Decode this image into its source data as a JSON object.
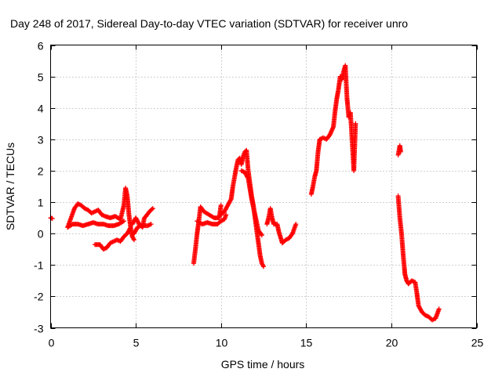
{
  "chart_data": {
    "type": "scatter",
    "title": "Day 248 of 2017, Sidereal Day-to-day VTEC variation (SDTVAR) for receiver unro",
    "xlabel": "GPS time / hours",
    "ylabel": "SDTVAR / TECUs",
    "xlim": [
      0,
      25
    ],
    "ylim": [
      -3,
      6
    ],
    "xticks": [
      "0",
      "5",
      "10",
      "15",
      "20",
      "25"
    ],
    "yticks": [
      "-3",
      "-2",
      "-1",
      "0",
      "1",
      "2",
      "3",
      "4",
      "5",
      "6"
    ],
    "grid": true,
    "marker": "+",
    "series_color": "#ff0000",
    "series": [
      {
        "name": "SDTVAR",
        "segments": [
          [
            [
              0.0,
              0.5
            ],
            [
              0.1,
              0.48
            ]
          ],
          [
            [
              1.0,
              0.2
            ],
            [
              1.2,
              0.5
            ],
            [
              1.4,
              0.8
            ],
            [
              1.6,
              0.95
            ],
            [
              1.8,
              0.9
            ],
            [
              2.0,
              0.8
            ],
            [
              2.2,
              0.75
            ],
            [
              2.4,
              0.65
            ],
            [
              2.6,
              0.7
            ],
            [
              2.8,
              0.75
            ],
            [
              3.0,
              0.6
            ],
            [
              3.2,
              0.55
            ],
            [
              3.5,
              0.5
            ],
            [
              3.8,
              0.55
            ],
            [
              4.1,
              0.45
            ],
            [
              4.3,
              0.9
            ],
            [
              4.4,
              1.45
            ],
            [
              4.5,
              1.2
            ],
            [
              4.6,
              0.6
            ],
            [
              4.7,
              0.2
            ],
            [
              4.8,
              -0.1
            ],
            [
              4.9,
              -0.2
            ]
          ],
          [
            [
              1.0,
              0.2
            ],
            [
              1.3,
              0.3
            ],
            [
              1.6,
              0.3
            ],
            [
              1.9,
              0.25
            ],
            [
              2.2,
              0.3
            ],
            [
              2.5,
              0.35
            ],
            [
              2.8,
              0.3
            ],
            [
              3.1,
              0.3
            ],
            [
              3.4,
              0.25
            ],
            [
              3.7,
              0.25
            ],
            [
              4.0,
              0.3
            ],
            [
              4.3,
              0.4
            ]
          ],
          [
            [
              2.6,
              -0.35
            ],
            [
              2.9,
              -0.35
            ],
            [
              3.1,
              -0.5
            ],
            [
              3.3,
              -0.45
            ],
            [
              3.5,
              -0.3
            ],
            [
              3.7,
              -0.25
            ],
            [
              3.9,
              -0.2
            ],
            [
              4.1,
              -0.25
            ],
            [
              4.3,
              -0.1
            ],
            [
              4.5,
              0.0
            ],
            [
              4.7,
              0.2
            ]
          ],
          [
            [
              4.8,
              0.3
            ],
            [
              5.0,
              0.5
            ],
            [
              5.2,
              0.3
            ],
            [
              5.4,
              0.2
            ],
            [
              5.5,
              0.5
            ],
            [
              5.6,
              0.55
            ],
            [
              5.8,
              0.7
            ],
            [
              6.0,
              0.8
            ]
          ],
          [
            [
              4.9,
              0.0
            ],
            [
              5.1,
              0.2
            ],
            [
              5.3,
              0.25
            ],
            [
              5.5,
              0.25
            ],
            [
              5.7,
              0.25
            ],
            [
              5.9,
              0.3
            ]
          ],
          [
            [
              8.4,
              -0.95
            ],
            [
              8.5,
              -0.5
            ],
            [
              8.6,
              0.0
            ],
            [
              8.7,
              0.4
            ],
            [
              8.8,
              0.85
            ],
            [
              9.0,
              0.7
            ],
            [
              9.3,
              0.6
            ],
            [
              9.6,
              0.5
            ],
            [
              9.9,
              0.5
            ],
            [
              10.0,
              0.9
            ]
          ],
          [
            [
              8.6,
              0.4
            ],
            [
              8.9,
              0.3
            ],
            [
              9.2,
              0.35
            ],
            [
              9.5,
              0.3
            ],
            [
              9.8,
              0.3
            ],
            [
              10.0,
              0.4
            ],
            [
              10.2,
              0.45
            ],
            [
              10.3,
              0.6
            ]
          ],
          [
            [
              10.0,
              0.6
            ],
            [
              10.2,
              0.7
            ],
            [
              10.4,
              0.9
            ],
            [
              10.6,
              1.1
            ],
            [
              10.7,
              1.5
            ],
            [
              10.8,
              1.8
            ],
            [
              10.9,
              2.1
            ],
            [
              11.0,
              2.35
            ],
            [
              11.1,
              2.4
            ],
            [
              11.2,
              2.2
            ],
            [
              11.3,
              2.45
            ],
            [
              11.4,
              2.6
            ],
            [
              11.5,
              2.65
            ],
            [
              11.6,
              2.0
            ],
            [
              11.7,
              1.6
            ],
            [
              11.8,
              1.2
            ],
            [
              11.9,
              0.9
            ],
            [
              12.0,
              0.5
            ],
            [
              12.1,
              0.1
            ],
            [
              12.2,
              -0.3
            ],
            [
              12.3,
              -0.7
            ],
            [
              12.4,
              -0.95
            ],
            [
              12.5,
              -1.05
            ]
          ],
          [
            [
              11.2,
              2.0
            ],
            [
              11.4,
              1.95
            ],
            [
              11.6,
              1.75
            ],
            [
              11.8,
              1.1
            ],
            [
              12.0,
              0.6
            ],
            [
              12.2,
              0.1
            ],
            [
              12.4,
              -0.05
            ]
          ],
          [
            [
              12.7,
              0.3
            ],
            [
              12.8,
              0.5
            ],
            [
              12.9,
              0.8
            ],
            [
              13.0,
              0.5
            ],
            [
              13.1,
              0.3
            ],
            [
              13.3,
              0.3
            ],
            [
              13.4,
              0.05
            ],
            [
              13.6,
              -0.3
            ],
            [
              13.8,
              -0.2
            ],
            [
              14.0,
              -0.15
            ],
            [
              14.2,
              0.0
            ],
            [
              14.4,
              0.3
            ]
          ],
          [
            [
              15.3,
              1.25
            ],
            [
              15.4,
              1.5
            ],
            [
              15.5,
              1.8
            ],
            [
              15.6,
              2.0
            ],
            [
              15.7,
              2.6
            ],
            [
              15.8,
              3.0
            ],
            [
              16.0,
              3.05
            ],
            [
              16.2,
              3.0
            ],
            [
              16.4,
              3.15
            ],
            [
              16.6,
              3.4
            ],
            [
              16.7,
              3.9
            ],
            [
              16.8,
              4.3
            ],
            [
              16.9,
              4.6
            ],
            [
              17.0,
              5.0
            ],
            [
              17.1,
              4.9
            ],
            [
              17.2,
              5.15
            ],
            [
              17.3,
              5.35
            ],
            [
              17.4,
              4.3
            ],
            [
              17.5,
              3.7
            ],
            [
              17.6,
              3.85
            ],
            [
              17.7,
              2.95
            ],
            [
              17.8,
              2.0
            ],
            [
              17.9,
              3.5
            ]
          ],
          [
            [
              20.4,
              2.5
            ],
            [
              20.5,
              2.8
            ],
            [
              20.55,
              2.6
            ]
          ],
          [
            [
              20.4,
              1.2
            ],
            [
              20.5,
              0.5
            ],
            [
              20.6,
              0.0
            ],
            [
              20.7,
              -0.7
            ],
            [
              20.8,
              -1.3
            ],
            [
              20.9,
              -1.5
            ],
            [
              21.0,
              -1.6
            ],
            [
              21.2,
              -1.5
            ],
            [
              21.4,
              -1.55
            ],
            [
              21.5,
              -1.9
            ],
            [
              21.6,
              -2.3
            ],
            [
              21.8,
              -2.5
            ],
            [
              22.0,
              -2.6
            ],
            [
              22.2,
              -2.65
            ],
            [
              22.4,
              -2.75
            ],
            [
              22.6,
              -2.7
            ],
            [
              22.8,
              -2.4
            ]
          ]
        ]
      }
    ]
  }
}
